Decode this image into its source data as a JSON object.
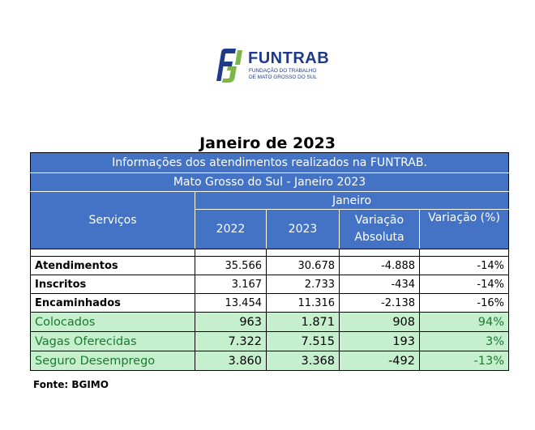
{
  "logo": {
    "name": "FUNTRAB",
    "subtitle_line1": "FUNDAÇÃO DO TRABALHO",
    "subtitle_line2": "DE MATO GROSSO DO SUL"
  },
  "title": "Janeiro de 2023",
  "table": {
    "info_header": "Informações dos atendimentos realizados na FUNTRAB.",
    "sub_header": "Mato Grosso do Sul - Janeiro 2023",
    "month_header": "Janeiro",
    "col_servicos": "Serviços",
    "col_2022": "2022",
    "col_2023": "2023",
    "col_var_abs_line1": "Variação",
    "col_var_abs_line2": "Absoluta",
    "col_var_pct": "Variação (%)",
    "rows": [
      {
        "label": "Atendimentos",
        "v2022": "35.566",
        "v2023": "30.678",
        "abs": "-4.888",
        "pct": "-14%"
      },
      {
        "label": "Inscritos",
        "v2022": "3.167",
        "v2023": "2.733",
        "abs": "-434",
        "pct": "-14%"
      },
      {
        "label": "Encaminhados",
        "v2022": "13.454",
        "v2023": "11.316",
        "abs": "-2.138",
        "pct": "-16%"
      },
      {
        "label": "Colocados",
        "v2022": "963",
        "v2023": "1.871",
        "abs": "908",
        "pct": "94%"
      },
      {
        "label": "Vagas Oferecidas",
        "v2022": "7.322",
        "v2023": "7.515",
        "abs": "193",
        "pct": "3%"
      },
      {
        "label": "Seguro Desemprego",
        "v2022": "3.860",
        "v2023": "3.368",
        "abs": "-492",
        "pct": "-13%"
      }
    ]
  },
  "source": "Fonte: BGIMO",
  "colors": {
    "header_blue": "#4472c4",
    "green_fill": "#c6efce",
    "green_text": "#1a7a30",
    "logo_navy": "#1e3a8a",
    "logo_green": "#7ab648"
  }
}
